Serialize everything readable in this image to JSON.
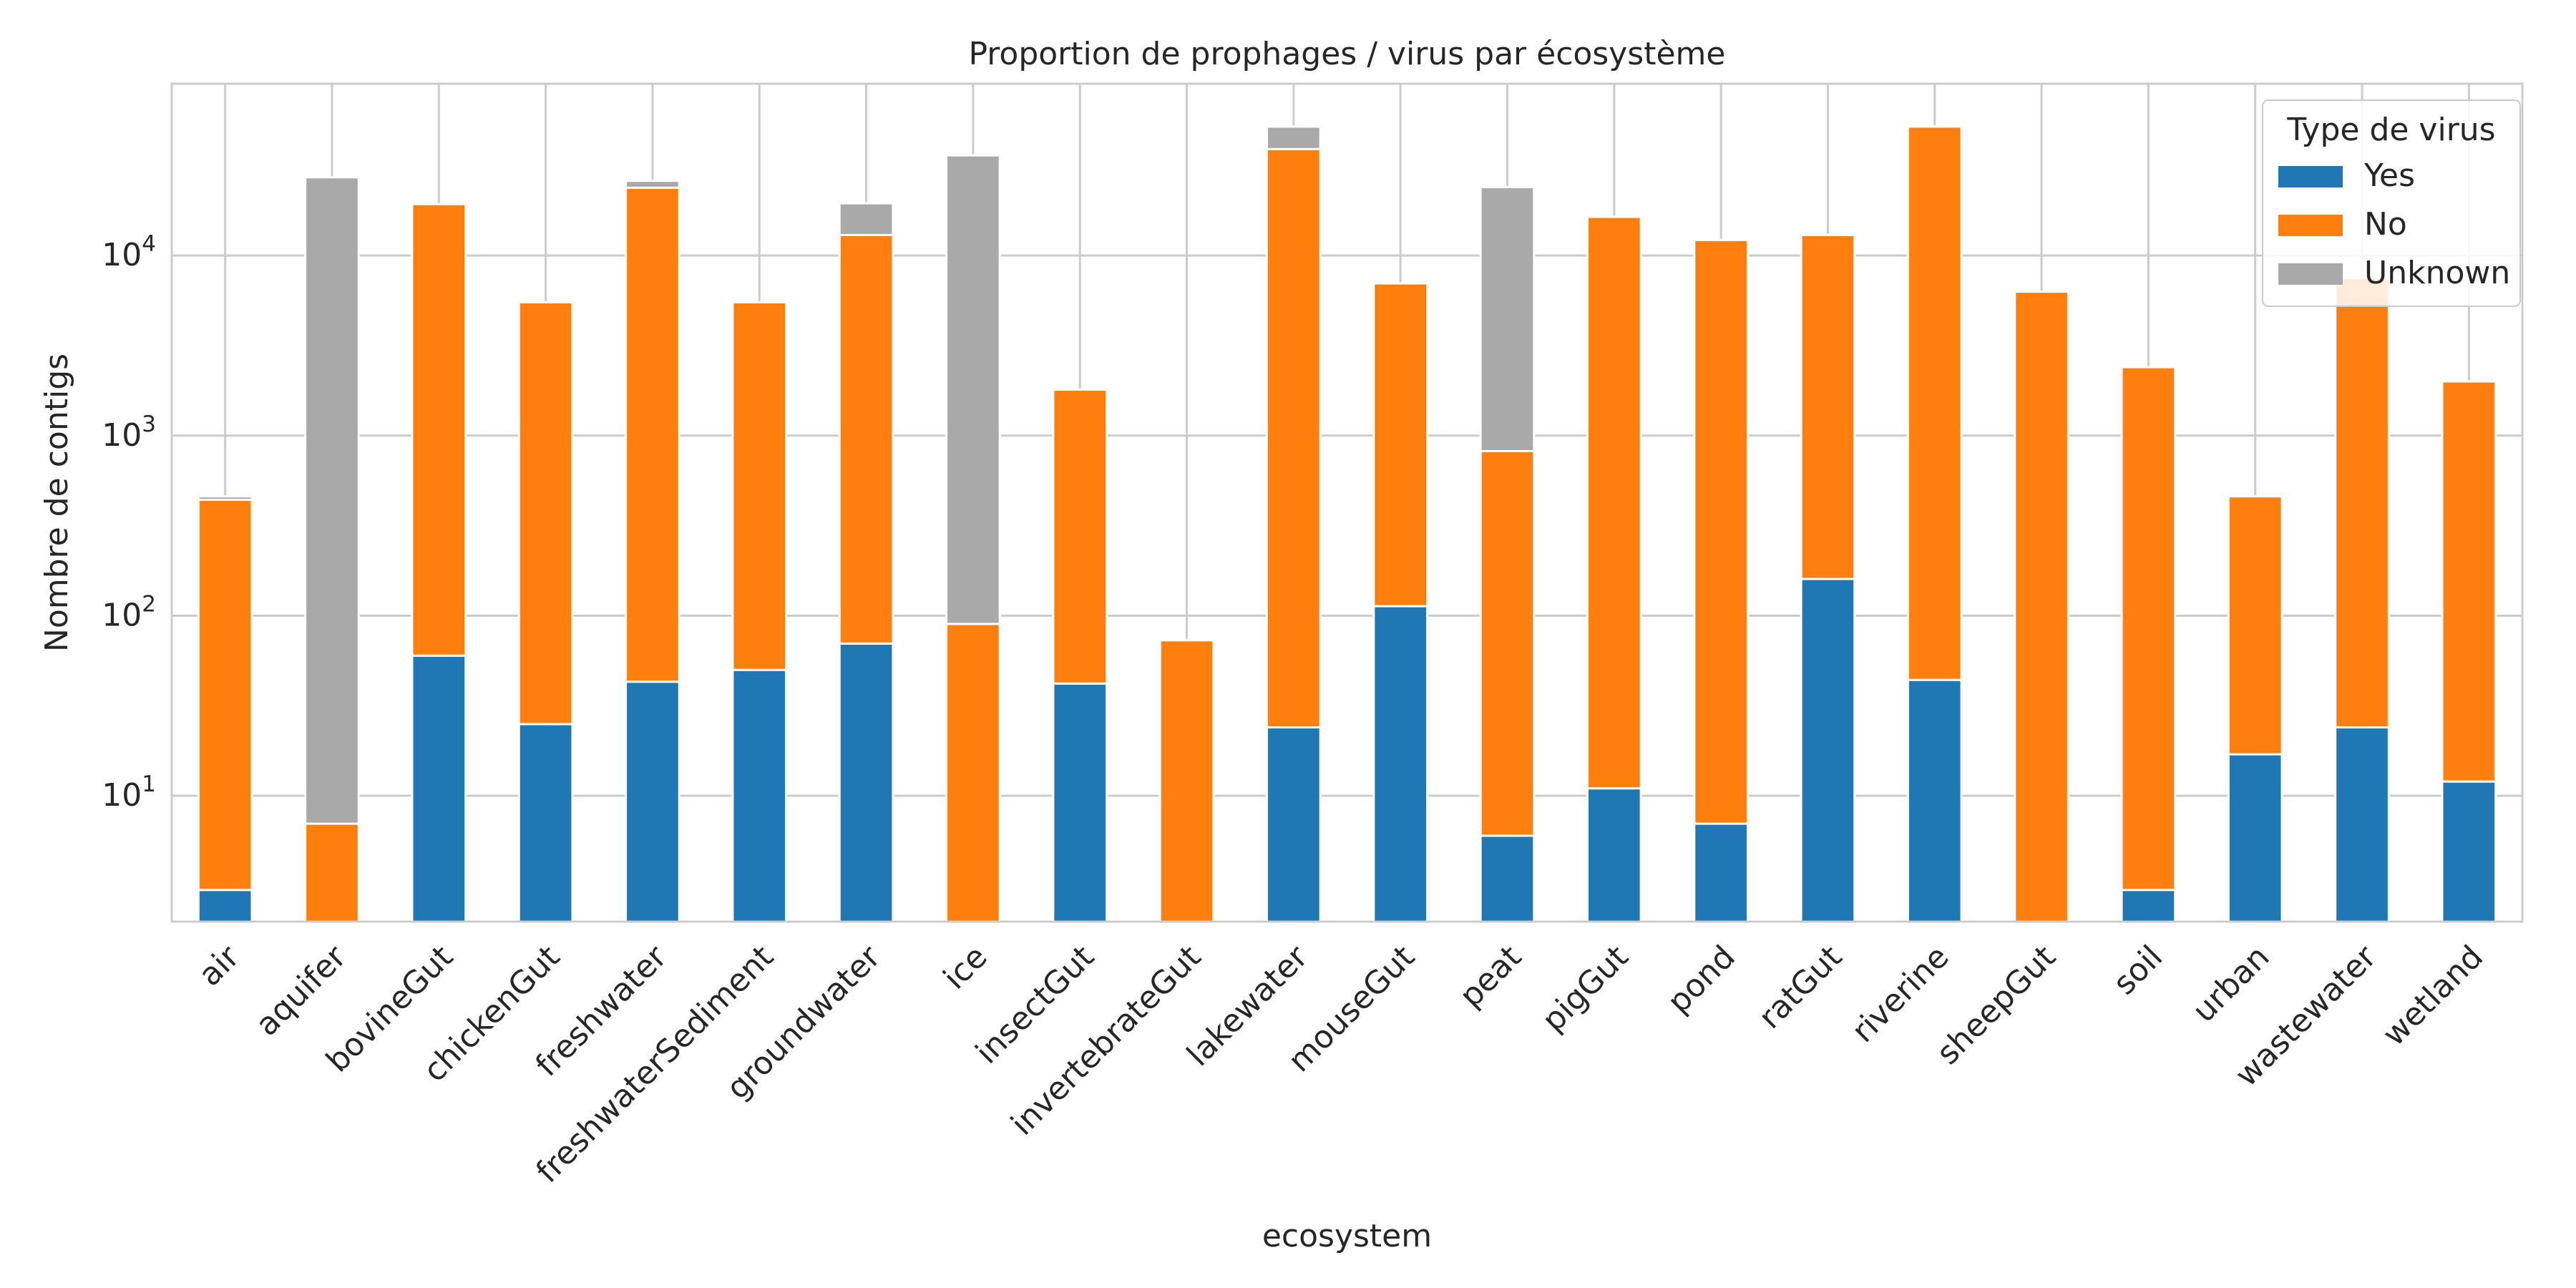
{
  "chart_data": {
    "type": "bar",
    "stacked": true,
    "title": "Proportion de prophages / virus par écosystème",
    "xlabel": "ecosystem",
    "ylabel": "Nombre de contigs",
    "y_scale": "log",
    "ylim": [
      2,
      90000
    ],
    "y_ticks": [
      10,
      100,
      1000,
      10000
    ],
    "y_tick_labels": [
      {
        "base": "10",
        "exp": "1"
      },
      {
        "base": "10",
        "exp": "2"
      },
      {
        "base": "10",
        "exp": "3"
      },
      {
        "base": "10",
        "exp": "4"
      }
    ],
    "grid": true,
    "legend": {
      "title": "Type de virus",
      "position": "top-right"
    },
    "categories": [
      "air",
      "aquifer",
      "bovineGut",
      "chickenGut",
      "freshwater",
      "freshwaterSediment",
      "groundwater",
      "ice",
      "insectGut",
      "invertebrateGut",
      "lakewater",
      "mouseGut",
      "peat",
      "pigGut",
      "pond",
      "ratGut",
      "riverine",
      "sheepGut",
      "soil",
      "urban",
      "wastewater",
      "wetland"
    ],
    "series": [
      {
        "name": "Yes",
        "color": "#1f77b4",
        "values": [
          3,
          0,
          60,
          25,
          43,
          50,
          70,
          0,
          42,
          0,
          24,
          113,
          6,
          11,
          7,
          160,
          44,
          0,
          3,
          17,
          24,
          12
        ]
      },
      {
        "name": "No",
        "color": "#ff7f0e",
        "values": [
          437,
          7,
          19240,
          5475,
          23757,
          5450,
          12930,
          90,
          1758,
          73,
          38976,
          6887,
          814,
          16389,
          12193,
          12840,
          51956,
          6300,
          2397,
          443,
          7476,
          1988
        ]
      },
      {
        "name": "Unknown",
        "color": "#a9a9a9",
        "values": [
          20,
          27193,
          0,
          0,
          2200,
          0,
          6500,
          35910,
          0,
          0,
          13000,
          0,
          23180,
          0,
          0,
          0,
          0,
          0,
          0,
          0,
          0,
          0
        ]
      }
    ]
  }
}
